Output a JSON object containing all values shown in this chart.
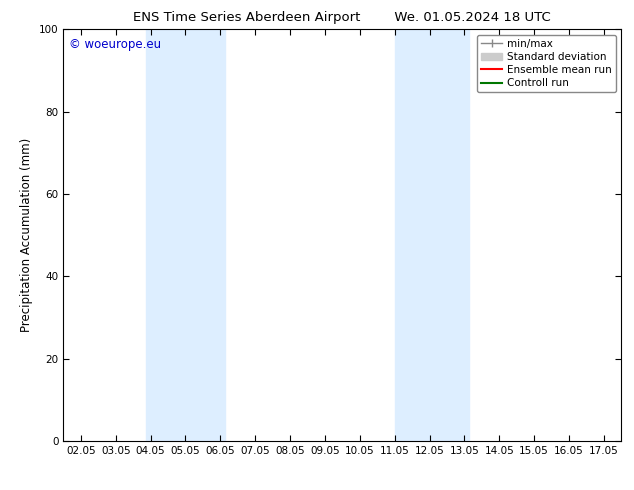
{
  "title_left": "ENS Time Series Aberdeen Airport",
  "title_right": "We. 01.05.2024 18 UTC",
  "ylabel": "Precipitation Accumulation (mm)",
  "ylim": [
    0,
    100
  ],
  "yticks": [
    0,
    20,
    40,
    60,
    80,
    100
  ],
  "x_tick_labels": [
    "02.05",
    "03.05",
    "04.05",
    "05.05",
    "06.05",
    "07.05",
    "08.05",
    "09.05",
    "10.05",
    "11.05",
    "12.05",
    "13.05",
    "14.05",
    "15.05",
    "16.05",
    "17.05"
  ],
  "x_tick_positions": [
    0,
    1,
    2,
    3,
    4,
    5,
    6,
    7,
    8,
    9,
    10,
    11,
    12,
    13,
    14,
    15
  ],
  "xlim": [
    -0.5,
    15.5
  ],
  "shaded_regions": [
    {
      "x_start": 1.87,
      "x_end": 4.13,
      "color": "#ddeeff"
    },
    {
      "x_start": 9.0,
      "x_end": 11.13,
      "color": "#ddeeff"
    }
  ],
  "watermark_text": "© woeurope.eu",
  "watermark_color": "#0000cc",
  "background_color": "#ffffff",
  "legend_items": [
    {
      "label": "min/max",
      "color": "#888888",
      "linestyle": "-",
      "linewidth": 1.0,
      "type": "line_with_caps"
    },
    {
      "label": "Standard deviation",
      "color": "#cccccc",
      "linestyle": "-",
      "linewidth": 7,
      "type": "patch"
    },
    {
      "label": "Ensemble mean run",
      "color": "#ff0000",
      "linestyle": "-",
      "linewidth": 1.5,
      "type": "line"
    },
    {
      "label": "Controll run",
      "color": "#007700",
      "linestyle": "-",
      "linewidth": 1.5,
      "type": "line"
    }
  ],
  "font_size_title": 9.5,
  "font_size_ticks": 7.5,
  "font_size_legend": 7.5,
  "font_size_ylabel": 8.5,
  "font_size_watermark": 8.5
}
